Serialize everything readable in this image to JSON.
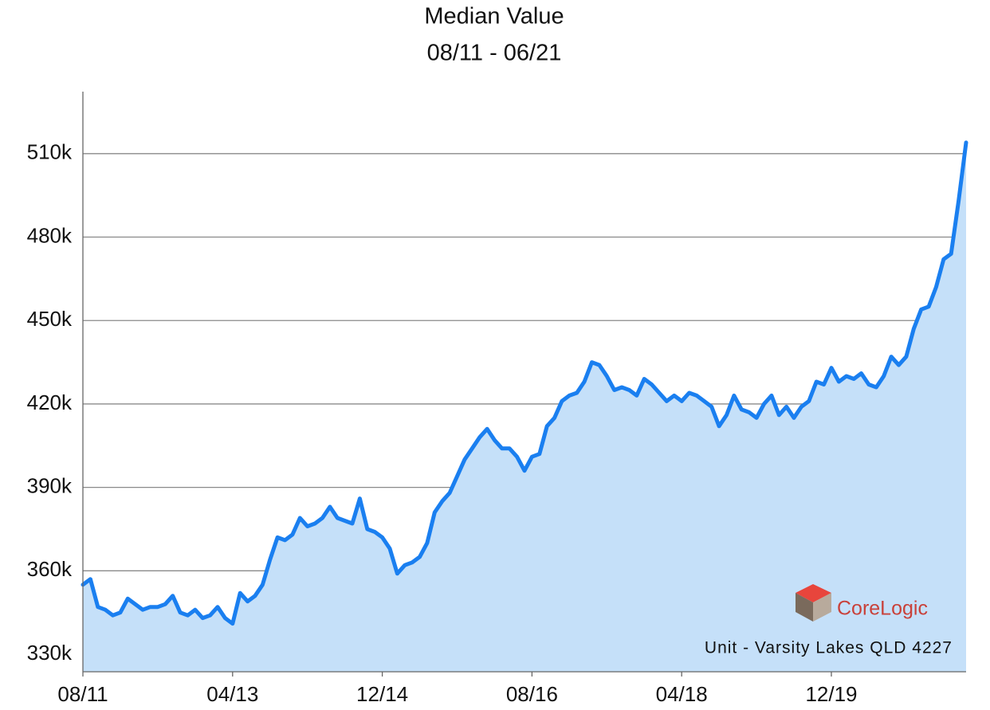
{
  "chart_data": {
    "type": "area",
    "title": "Median Value",
    "subtitle": "08/11 - 06/21",
    "annotation": "Unit - Varsity Lakes QLD 4227",
    "logo_text": "CoreLogic",
    "line_color": "#1a7ff0",
    "fill_color": "#c5e0f9",
    "grid": true,
    "categories": [
      "08/11",
      null,
      null,
      null,
      null,
      null,
      null,
      null,
      null,
      null,
      null,
      null,
      null,
      null,
      null,
      null,
      null,
      null,
      null,
      null,
      "04/13",
      null,
      null,
      null,
      null,
      null,
      null,
      null,
      null,
      null,
      null,
      null,
      null,
      null,
      null,
      null,
      null,
      null,
      null,
      null,
      "12/14",
      null,
      null,
      null,
      null,
      null,
      null,
      null,
      null,
      null,
      null,
      null,
      null,
      null,
      null,
      null,
      null,
      null,
      null,
      null,
      "08/16",
      null,
      null,
      null,
      null,
      null,
      null,
      null,
      null,
      null,
      null,
      null,
      null,
      null,
      null,
      null,
      null,
      null,
      null,
      null,
      "04/18",
      null,
      null,
      null,
      null,
      null,
      null,
      null,
      null,
      null,
      null,
      null,
      null,
      null,
      null,
      null,
      null,
      null,
      null,
      null,
      "12/19",
      null,
      null,
      null,
      null,
      null,
      null,
      null,
      null,
      null,
      null,
      null,
      null,
      null,
      null,
      null,
      null,
      null,
      null
    ],
    "values": [
      355000,
      357000,
      347000,
      346000,
      344000,
      345000,
      350000,
      348000,
      346000,
      347000,
      347000,
      348000,
      351000,
      345000,
      344000,
      346000,
      343000,
      344000,
      347000,
      343000,
      341000,
      352000,
      349000,
      351000,
      355000,
      364000,
      372000,
      371000,
      373000,
      379000,
      376000,
      377000,
      379000,
      383000,
      379000,
      378000,
      377000,
      386000,
      375000,
      374000,
      372000,
      368000,
      359000,
      362000,
      363000,
      365000,
      370000,
      381000,
      385000,
      388000,
      394000,
      400000,
      404000,
      408000,
      411000,
      407000,
      404000,
      404000,
      401000,
      396000,
      401000,
      402000,
      412000,
      415000,
      421000,
      423000,
      424000,
      428000,
      435000,
      434000,
      430000,
      425000,
      426000,
      425000,
      423000,
      429000,
      427000,
      424000,
      421000,
      423000,
      421000,
      424000,
      423000,
      421000,
      419000,
      412000,
      416000,
      423000,
      418000,
      417000,
      415000,
      420000,
      423000,
      416000,
      419000,
      415000,
      419000,
      421000,
      428000,
      427000,
      433000,
      428000,
      430000,
      429000,
      431000,
      427000,
      426000,
      430000,
      437000,
      434000,
      437000,
      447000,
      454000,
      455000,
      462000,
      472000,
      474000,
      493000,
      514000
    ],
    "ylim": [
      323700,
      532300
    ],
    "yticks": [
      {
        "value": 330000,
        "label": "330k"
      },
      {
        "value": 360000,
        "label": "360k"
      },
      {
        "value": 390000,
        "label": "390k"
      },
      {
        "value": 420000,
        "label": "420k"
      },
      {
        "value": 450000,
        "label": "450k"
      },
      {
        "value": 480000,
        "label": "480k"
      },
      {
        "value": 510000,
        "label": "510k"
      }
    ]
  }
}
